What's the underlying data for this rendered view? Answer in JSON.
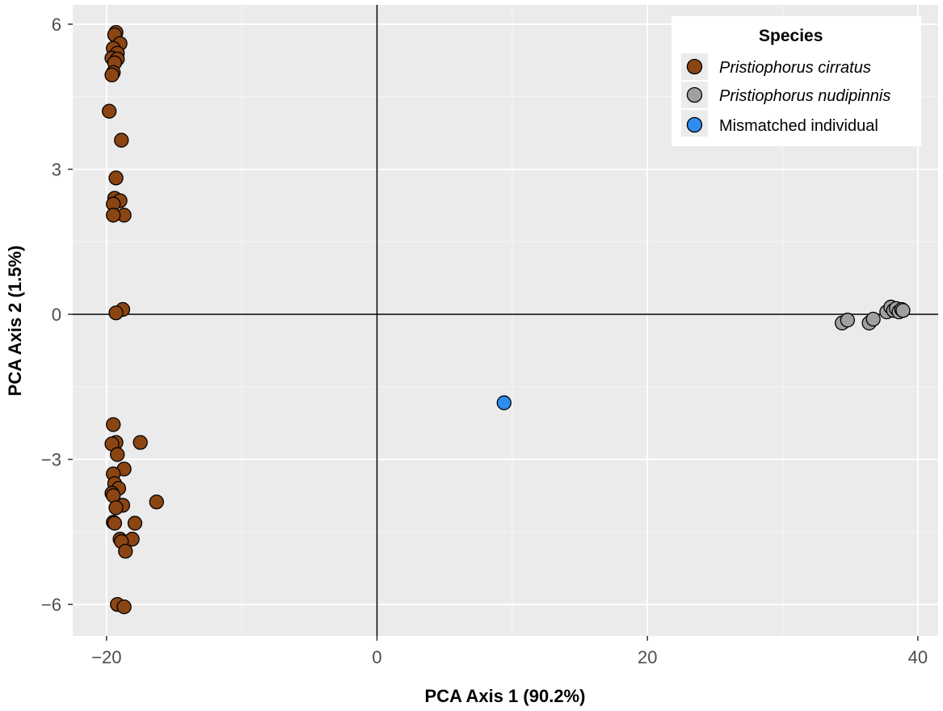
{
  "chart_data": {
    "type": "scatter",
    "xlabel": "PCA Axis 1 (90.2%)",
    "ylabel": "PCA Axis 2 (1.5%)",
    "xlim": [
      -22.5,
      41.5
    ],
    "ylim": [
      -6.65,
      6.4
    ],
    "x_ticks": [
      -20,
      0,
      20,
      40
    ],
    "x_tick_labels": [
      "−20",
      "0",
      "20",
      "40"
    ],
    "y_ticks": [
      -6,
      -3,
      0,
      3,
      6
    ],
    "y_tick_labels": [
      "−6",
      "−3",
      "0",
      "3",
      "6"
    ],
    "grid": true,
    "reference_lines": {
      "x": 0,
      "y": 0
    },
    "legend": {
      "title": "Species",
      "position": "top-right",
      "entries": [
        "Pristiophorus cirratus",
        "Pristiophorus nudipinnis",
        "Mismatched individual"
      ]
    },
    "series": [
      {
        "name": "Pristiophorus cirratus",
        "color": "#8B4513",
        "italic": true,
        "points": [
          [
            -19.3,
            5.83
          ],
          [
            -19.4,
            5.78
          ],
          [
            -19.0,
            5.6
          ],
          [
            -19.5,
            5.5
          ],
          [
            -19.2,
            5.4
          ],
          [
            -19.6,
            5.3
          ],
          [
            -19.2,
            5.28
          ],
          [
            -19.4,
            5.2
          ],
          [
            -19.5,
            5.0
          ],
          [
            -19.6,
            4.95
          ],
          [
            -19.8,
            4.2
          ],
          [
            -18.9,
            3.6
          ],
          [
            -19.3,
            2.82
          ],
          [
            -19.4,
            2.4
          ],
          [
            -19.0,
            2.35
          ],
          [
            -19.5,
            2.28
          ],
          [
            -18.7,
            2.05
          ],
          [
            -19.5,
            2.05
          ],
          [
            -18.8,
            0.1
          ],
          [
            -19.3,
            0.03
          ],
          [
            -19.5,
            -2.28
          ],
          [
            -19.3,
            -2.65
          ],
          [
            -19.6,
            -2.68
          ],
          [
            -17.5,
            -2.65
          ],
          [
            -19.2,
            -2.9
          ],
          [
            -18.7,
            -3.2
          ],
          [
            -19.5,
            -3.3
          ],
          [
            -19.4,
            -3.5
          ],
          [
            -19.1,
            -3.6
          ],
          [
            -19.6,
            -3.7
          ],
          [
            -19.5,
            -3.75
          ],
          [
            -16.3,
            -3.88
          ],
          [
            -18.8,
            -3.95
          ],
          [
            -19.3,
            -4.0
          ],
          [
            -19.5,
            -4.3
          ],
          [
            -19.4,
            -4.32
          ],
          [
            -17.9,
            -4.32
          ],
          [
            -19.0,
            -4.65
          ],
          [
            -18.1,
            -4.65
          ],
          [
            -18.9,
            -4.7
          ],
          [
            -18.6,
            -4.9
          ],
          [
            -19.2,
            -6.0
          ],
          [
            -18.7,
            -6.05
          ]
        ]
      },
      {
        "name": "Pristiophorus nudipinnis",
        "color": "#A0A0A0",
        "italic": true,
        "points": [
          [
            34.4,
            -0.18
          ],
          [
            34.8,
            -0.12
          ],
          [
            36.4,
            -0.18
          ],
          [
            36.7,
            -0.1
          ],
          [
            37.7,
            0.05
          ],
          [
            38.0,
            0.15
          ],
          [
            38.2,
            0.08
          ],
          [
            38.4,
            0.12
          ],
          [
            38.6,
            0.05
          ],
          [
            38.8,
            0.1
          ],
          [
            38.9,
            0.08
          ]
        ]
      },
      {
        "name": "Mismatched individual",
        "color": "#2E8EF0",
        "italic": false,
        "points": [
          [
            9.4,
            -1.83
          ]
        ]
      }
    ]
  }
}
